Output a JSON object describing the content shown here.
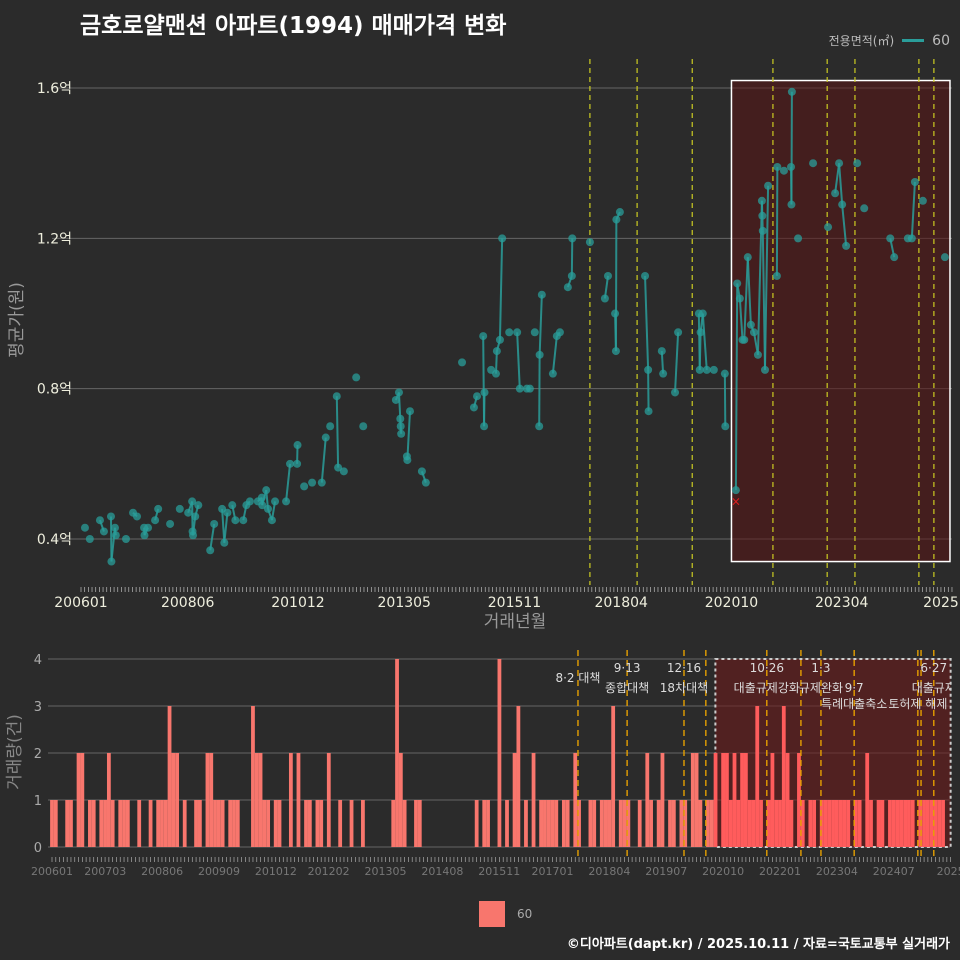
{
  "title": "금호로얄맨션 아파트(1994) 매매가격 변화",
  "legend_top": {
    "title": "전용면적(㎡)",
    "item": "60",
    "color": "#2a9d9a"
  },
  "legend_bottom": {
    "item": "60",
    "color": "#f8766d"
  },
  "footer": "©디아파트(dapt.kr) / 2025.10.11 / 자료=국토교통부 실거래가",
  "chart_data": [
    {
      "type": "scatter",
      "title": "금호로얄맨션 아파트(1994) 매매가격 변화",
      "xlabel": "거래년월",
      "ylabel": "평균가(원)",
      "ylim": [
        0.34,
        1.62
      ],
      "yticks": [
        {
          "v": 0.4,
          "label": "0.4억"
        },
        {
          "v": 0.8,
          "label": "0.8억"
        },
        {
          "v": 1.2,
          "label": "1.2억"
        },
        {
          "v": 1.6,
          "label": "1.6억"
        }
      ],
      "xticks": [
        {
          "t": 2006.0,
          "label": "200601"
        },
        {
          "t": 2008.42,
          "label": "200806"
        },
        {
          "t": 2010.92,
          "label": "201012"
        },
        {
          "t": 2013.33,
          "label": "201305"
        },
        {
          "t": 2015.83,
          "label": "201511"
        },
        {
          "t": 2018.25,
          "label": "201804"
        },
        {
          "t": 2020.75,
          "label": "202010"
        },
        {
          "t": 2023.25,
          "label": "202304"
        },
        {
          "t": 2025.5,
          "label": "2025"
        }
      ],
      "series_name": "60",
      "points": [
        [
          2006.09,
          0.43
        ],
        [
          2006.2,
          0.4
        ],
        [
          2006.43,
          0.45
        ],
        [
          2006.52,
          0.42
        ],
        [
          2006.68,
          0.46
        ],
        [
          2006.69,
          0.34
        ],
        [
          2006.77,
          0.43
        ],
        [
          2006.79,
          0.41
        ],
        [
          2007.02,
          0.4
        ],
        [
          2007.18,
          0.47
        ],
        [
          2007.27,
          0.46
        ],
        [
          2007.43,
          0.43
        ],
        [
          2007.44,
          0.41
        ],
        [
          2007.52,
          0.43
        ],
        [
          2007.68,
          0.45
        ],
        [
          2007.75,
          0.48
        ],
        [
          2008.02,
          0.44
        ],
        [
          2008.24,
          0.48
        ],
        [
          2008.43,
          0.47
        ],
        [
          2008.52,
          0.5
        ],
        [
          2008.53,
          0.42
        ],
        [
          2008.54,
          0.41
        ],
        [
          2008.59,
          0.46
        ],
        [
          2008.66,
          0.49
        ],
        [
          2008.93,
          0.37
        ],
        [
          2009.02,
          0.44
        ],
        [
          2009.2,
          0.48
        ],
        [
          2009.25,
          0.39
        ],
        [
          2009.32,
          0.47
        ],
        [
          2009.43,
          0.49
        ],
        [
          2009.5,
          0.45
        ],
        [
          2009.68,
          0.45
        ],
        [
          2009.75,
          0.49
        ],
        [
          2009.83,
          0.5
        ],
        [
          2010.01,
          0.5
        ],
        [
          2010.1,
          0.51
        ],
        [
          2010.11,
          0.49
        ],
        [
          2010.2,
          0.53
        ],
        [
          2010.24,
          0.48
        ],
        [
          2010.33,
          0.45
        ],
        [
          2010.4,
          0.5
        ],
        [
          2010.65,
          0.5
        ],
        [
          2010.74,
          0.6
        ],
        [
          2010.9,
          0.6
        ],
        [
          2010.91,
          0.65
        ],
        [
          2011.06,
          0.54
        ],
        [
          2011.24,
          0.55
        ],
        [
          2011.46,
          0.55
        ],
        [
          2011.55,
          0.67
        ],
        [
          2011.65,
          0.7
        ],
        [
          2011.8,
          0.78
        ],
        [
          2011.83,
          0.59
        ],
        [
          2011.96,
          0.58
        ],
        [
          2012.24,
          0.83
        ],
        [
          2012.4,
          0.7
        ],
        [
          2013.14,
          0.77
        ],
        [
          2013.21,
          0.79
        ],
        [
          2013.24,
          0.72
        ],
        [
          2013.25,
          0.7
        ],
        [
          2013.26,
          0.68
        ],
        [
          2013.39,
          0.62
        ],
        [
          2013.4,
          0.61
        ],
        [
          2013.46,
          0.74
        ],
        [
          2013.73,
          0.58
        ],
        [
          2013.82,
          0.55
        ],
        [
          2014.64,
          0.87
        ],
        [
          2014.91,
          0.75
        ],
        [
          2014.98,
          0.78
        ],
        [
          2015.14,
          0.7
        ],
        [
          2015.15,
          0.79
        ],
        [
          2015.12,
          0.94
        ],
        [
          2015.3,
          0.85
        ],
        [
          2015.41,
          0.84
        ],
        [
          2015.43,
          0.9
        ],
        [
          2015.5,
          0.93
        ],
        [
          2015.55,
          1.2
        ],
        [
          2015.71,
          0.95
        ],
        [
          2015.89,
          0.95
        ],
        [
          2015.95,
          0.8
        ],
        [
          2016.11,
          0.8
        ],
        [
          2016.18,
          0.8
        ],
        [
          2016.29,
          0.95
        ],
        [
          2016.39,
          0.7
        ],
        [
          2016.4,
          0.89
        ],
        [
          2016.45,
          1.05
        ],
        [
          2016.7,
          0.84
        ],
        [
          2016.79,
          0.94
        ],
        [
          2016.86,
          0.95
        ],
        [
          2017.04,
          1.07
        ],
        [
          2017.13,
          1.1
        ],
        [
          2017.14,
          1.2
        ],
        [
          2017.54,
          1.19
        ],
        [
          2017.88,
          1.04
        ],
        [
          2017.95,
          1.1
        ],
        [
          2018.11,
          1.0
        ],
        [
          2018.13,
          0.9
        ],
        [
          2018.14,
          1.25
        ],
        [
          2018.22,
          1.27
        ],
        [
          2018.79,
          1.1
        ],
        [
          2018.86,
          0.85
        ],
        [
          2018.87,
          0.74
        ],
        [
          2019.17,
          0.9
        ],
        [
          2019.2,
          0.84
        ],
        [
          2019.47,
          0.79
        ],
        [
          2019.54,
          0.95
        ],
        [
          2020.01,
          1.0
        ],
        [
          2020.05,
          0.95
        ],
        [
          2020.1,
          1.0
        ],
        [
          2020.03,
          0.85
        ],
        [
          2020.19,
          0.85
        ],
        [
          2020.35,
          0.85
        ],
        [
          2020.6,
          0.84
        ],
        [
          2020.61,
          0.7
        ],
        [
          2020.85,
          0.53
        ],
        [
          2020.88,
          1.08
        ],
        [
          2020.94,
          1.04
        ],
        [
          2021.0,
          0.93
        ],
        [
          2021.04,
          0.93
        ],
        [
          2021.12,
          1.15
        ],
        [
          2021.19,
          0.97
        ],
        [
          2021.26,
          0.95
        ],
        [
          2021.35,
          0.89
        ],
        [
          2021.44,
          1.3
        ],
        [
          2021.45,
          1.26
        ],
        [
          2021.46,
          1.22
        ],
        [
          2021.51,
          0.85
        ],
        [
          2021.58,
          1.34
        ],
        [
          2021.78,
          1.1
        ],
        [
          2021.79,
          1.39
        ],
        [
          2021.94,
          1.38
        ],
        [
          2022.1,
          1.39
        ],
        [
          2022.11,
          1.29
        ],
        [
          2022.12,
          1.59
        ],
        [
          2022.26,
          1.2
        ],
        [
          2022.6,
          1.4
        ],
        [
          2022.94,
          1.23
        ],
        [
          2023.1,
          1.32
        ],
        [
          2023.19,
          1.4
        ],
        [
          2023.26,
          1.29
        ],
        [
          2023.35,
          1.18
        ],
        [
          2023.6,
          1.4
        ],
        [
          2023.76,
          1.28
        ],
        [
          2024.35,
          1.2
        ],
        [
          2024.44,
          1.15
        ],
        [
          2024.75,
          1.2
        ],
        [
          2024.84,
          1.2
        ],
        [
          2024.91,
          1.35
        ],
        [
          2025.09,
          1.3
        ],
        [
          2025.59,
          1.15
        ]
      ],
      "outlier_marks": [
        [
          2020.85,
          0.5
        ]
      ],
      "policy_dates": [
        2017.54,
        2018.61,
        2019.86,
        2021.69,
        2022.92,
        2023.55,
        2025.0,
        2025.34
      ],
      "highlight_range": {
        "t": [
          2020.75,
          2025.75
        ],
        "v": [
          0.34,
          1.62
        ]
      }
    },
    {
      "type": "bar",
      "xlabel": "",
      "ylabel": "거래량(건)",
      "ylim": [
        0,
        4
      ],
      "yticks": [
        {
          "v": 0,
          "label": "0"
        },
        {
          "v": 1,
          "label": "1"
        },
        {
          "v": 2,
          "label": "2"
        },
        {
          "v": 3,
          "label": "3"
        },
        {
          "v": 4,
          "label": "4"
        }
      ],
      "xticks": [
        {
          "t": 2006.0,
          "label": "200601"
        },
        {
          "t": 2007.17,
          "label": "200703"
        },
        {
          "t": 2008.42,
          "label": "200806"
        },
        {
          "t": 2009.67,
          "label": "200909"
        },
        {
          "t": 2010.92,
          "label": "201012"
        },
        {
          "t": 2012.08,
          "label": "201202"
        },
        {
          "t": 2013.33,
          "label": "201305"
        },
        {
          "t": 2014.58,
          "label": "201408"
        },
        {
          "t": 2015.83,
          "label": "201511"
        },
        {
          "t": 2017.0,
          "label": "201701"
        },
        {
          "t": 2018.25,
          "label": "201804"
        },
        {
          "t": 2019.5,
          "label": "201907"
        },
        {
          "t": 2020.75,
          "label": "202010"
        },
        {
          "t": 2022.0,
          "label": "202201"
        },
        {
          "t": 2023.25,
          "label": "202304"
        },
        {
          "t": 2024.5,
          "label": "202407"
        },
        {
          "t": 2025.75,
          "label": "2025"
        }
      ],
      "start_month": "2006-01",
      "monthly_counts": [
        1,
        1,
        0,
        0,
        1,
        1,
        0,
        2,
        2,
        0,
        1,
        1,
        0,
        1,
        1,
        2,
        1,
        0,
        1,
        1,
        1,
        0,
        0,
        1,
        0,
        0,
        1,
        0,
        1,
        1,
        1,
        3,
        2,
        2,
        0,
        1,
        0,
        0,
        1,
        1,
        0,
        2,
        2,
        1,
        1,
        1,
        0,
        1,
        1,
        1,
        0,
        0,
        0,
        3,
        2,
        2,
        1,
        1,
        0,
        1,
        1,
        0,
        0,
        2,
        0,
        2,
        0,
        1,
        1,
        0,
        1,
        1,
        0,
        2,
        0,
        0,
        1,
        0,
        0,
        1,
        0,
        0,
        1,
        0,
        0,
        0,
        0,
        0,
        0,
        0,
        1,
        4,
        2,
        1,
        0,
        0,
        1,
        1,
        0,
        0,
        0,
        0,
        0,
        0,
        0,
        0,
        0,
        0,
        0,
        0,
        0,
        0,
        1,
        0,
        1,
        1,
        0,
        0,
        4,
        0,
        1,
        0,
        2,
        3,
        0,
        1,
        0,
        2,
        0,
        1,
        1,
        1,
        1,
        1,
        0,
        1,
        1,
        0,
        2,
        1,
        0,
        0,
        1,
        1,
        0,
        1,
        1,
        1,
        3,
        0,
        1,
        1,
        1,
        0,
        0,
        1,
        0,
        2,
        1,
        0,
        1,
        2,
        0,
        1,
        1,
        0,
        1,
        1,
        0,
        2,
        2,
        1,
        0,
        1,
        1,
        2,
        0,
        2,
        2,
        1,
        2,
        1,
        2,
        2,
        1,
        1,
        3,
        1,
        0,
        1,
        2,
        1,
        1,
        3,
        2,
        1,
        0,
        2,
        1,
        0,
        1,
        1,
        0,
        1,
        1,
        1,
        1,
        1,
        1,
        1,
        1,
        0,
        1,
        1,
        0,
        2,
        1,
        0,
        1,
        1,
        0,
        1,
        1,
        1,
        1,
        1,
        1,
        1,
        0,
        1,
        1,
        1,
        1,
        1,
        1,
        1,
        0
      ],
      "policy_dates": [
        2017.56,
        2018.64,
        2019.89,
        2020.37,
        2021.71,
        2022.46,
        2022.9,
        2023.63,
        2025.03,
        2025.1,
        2025.38
      ],
      "annotations": [
        {
          "t": 2017.56,
          "row": 1.5,
          "text": "8·2 대책"
        },
        {
          "t": 2018.64,
          "row": 1,
          "text": "9·13"
        },
        {
          "t": 2018.64,
          "row": 2,
          "text": "종합대책"
        },
        {
          "t": 2019.89,
          "row": 1,
          "text": "12·16"
        },
        {
          "t": 2019.89,
          "row": 2,
          "text": "18차대책"
        },
        {
          "t": 2021.71,
          "row": 1,
          "text": "10·26"
        },
        {
          "t": 2021.71,
          "row": 2,
          "text": "대출규제강화"
        },
        {
          "t": 2022.9,
          "row": 1,
          "text": "1·3"
        },
        {
          "t": 2022.9,
          "row": 2,
          "text": "규제완화"
        },
        {
          "t": 2023.63,
          "row": 2,
          "text": "9·7"
        },
        {
          "t": 2023.63,
          "row": 3,
          "text": "특례대출축소"
        },
        {
          "t": 2025.03,
          "row": 3,
          "text": "토허제 해제"
        },
        {
          "t": 2025.38,
          "row": 1,
          "text": "6·27"
        },
        {
          "t": 2025.38,
          "row": 2,
          "text": "대출규제"
        }
      ],
      "highlight_range": {
        "t": [
          2020.58,
          2025.75
        ]
      }
    }
  ]
}
